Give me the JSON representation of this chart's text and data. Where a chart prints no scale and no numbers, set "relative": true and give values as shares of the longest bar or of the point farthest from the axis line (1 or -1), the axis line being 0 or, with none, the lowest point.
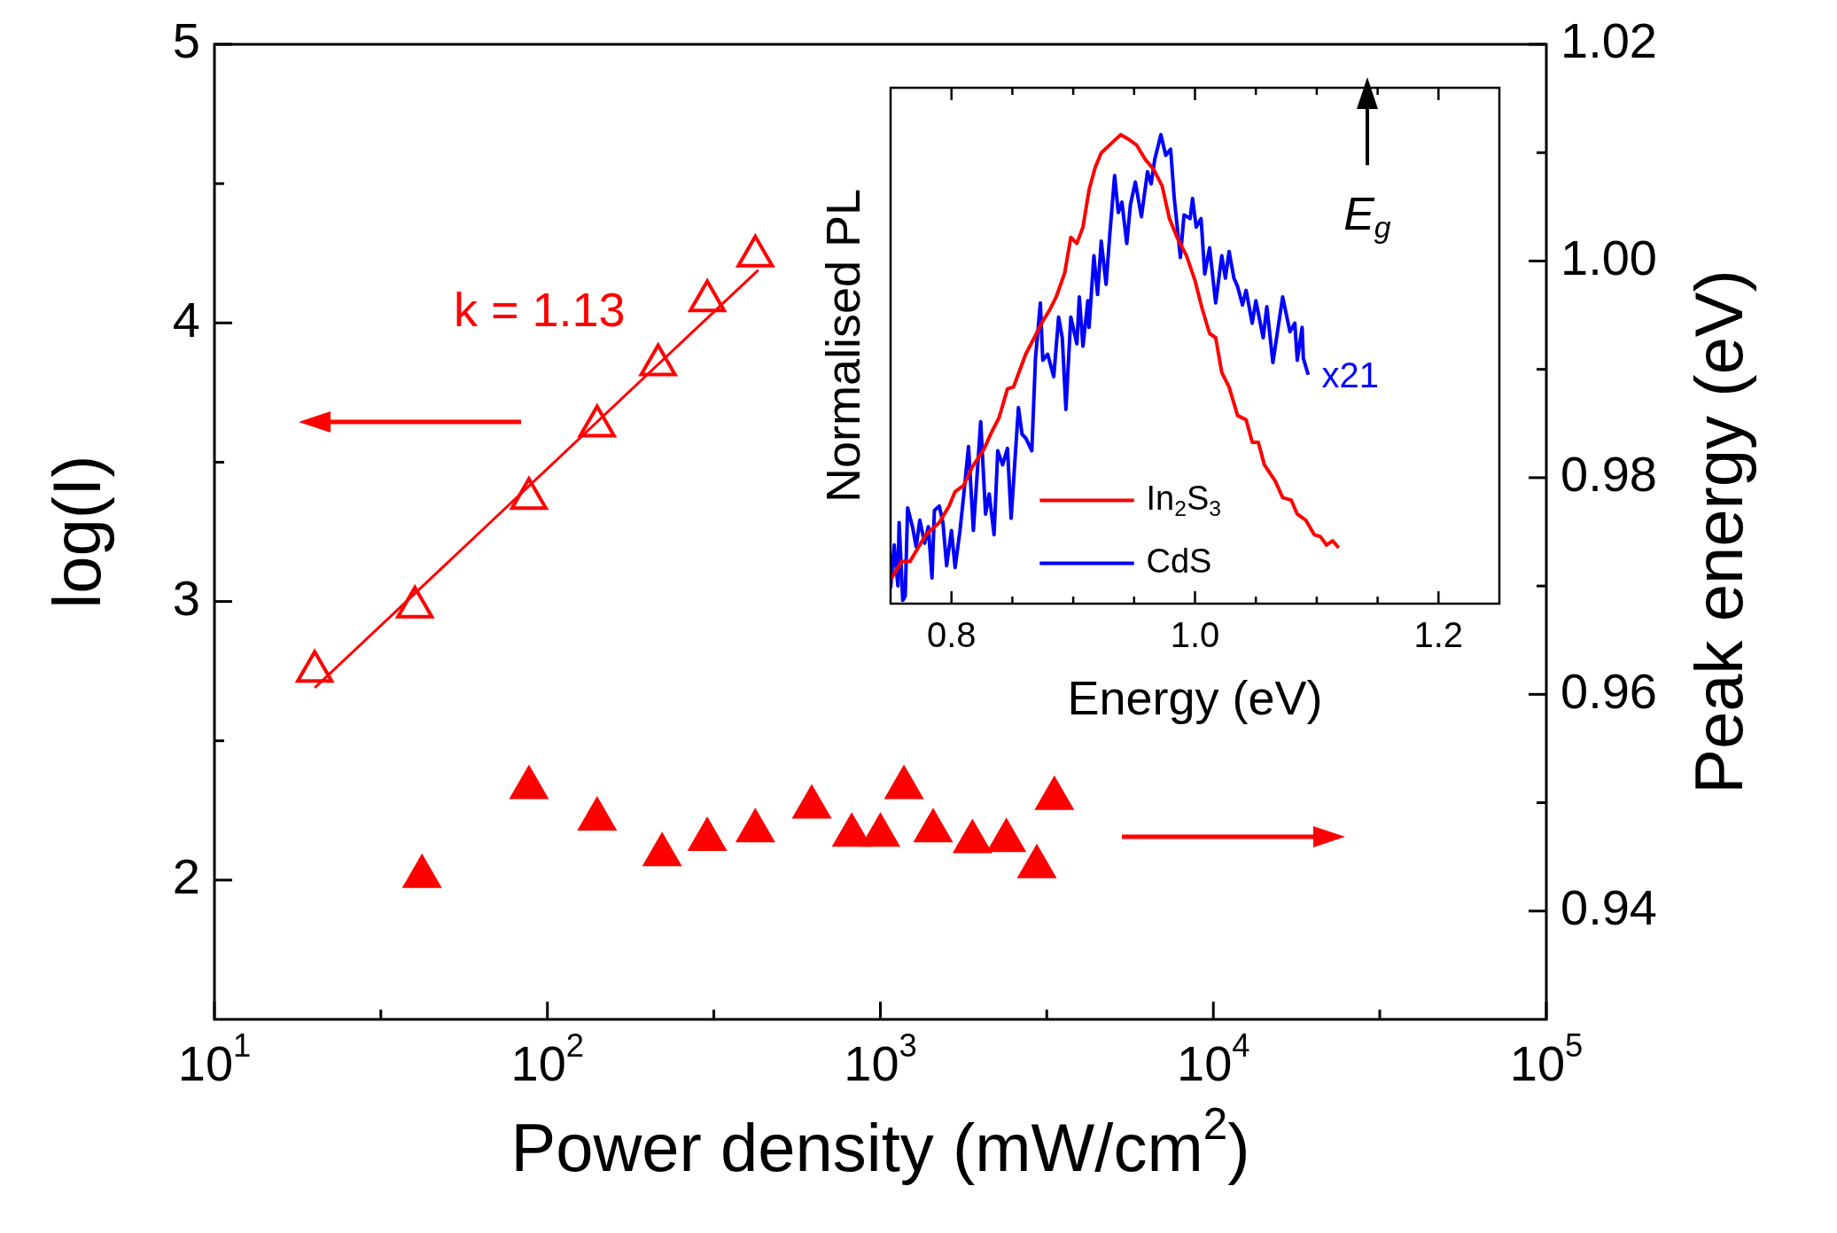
{
  "chart_data": [
    {
      "type": "scatter",
      "xlabel": "Power density (mW/cm$^{2}$)",
      "ylabel": "log(I)",
      "y2label": "Peak energy (eV)",
      "log": "x",
      "legend": false,
      "xlim": [
        10,
        100000
      ],
      "ylim": [
        1.5,
        5
      ],
      "y2lim": [
        0.93,
        1.02
      ],
      "xticks": [
        {
          "value": 10,
          "label": "10$^{1}$"
        },
        {
          "value": 31.6,
          "label": null
        },
        {
          "value": 100,
          "label": "10$^{2}$"
        },
        {
          "value": 316,
          "label": null
        },
        {
          "value": 1000,
          "label": "10$^{3}$"
        },
        {
          "value": 3160,
          "label": null
        },
        {
          "value": 10000,
          "label": "10$^{4}$"
        },
        {
          "value": 31600,
          "label": null
        },
        {
          "value": 100000,
          "label": "10$^{5}$"
        }
      ],
      "yticks": [
        2,
        {
          "value": 2.5,
          "label": null
        },
        3,
        {
          "value": 3.5,
          "label": null
        },
        4,
        {
          "value": 4.5,
          "label": null
        },
        5
      ],
      "y2ticks": [
        0.94,
        {
          "value": 0.95,
          "label": null
        },
        0.96,
        {
          "value": 0.97,
          "label": null
        },
        0.98,
        {
          "value": 0.99,
          "label": null
        },
        {
          "value": 1,
          "label": "1.00"
        },
        {
          "value": 1.01,
          "label": null
        },
        1.02
      ],
      "annotations": [
        "k = 1.13"
      ],
      "series": [
        {
          "marker": "triangle",
          "color": "#ff0000",
          "x": [
            20,
            40,
            88,
            141,
            215,
            302,
            421
          ],
          "values": [
            2.75,
            2.98,
            3.37,
            3.63,
            3.85,
            4.08,
            4.24
          ]
        },
        {
          "type": "line",
          "color": "#ff0000",
          "x": [
            20,
            430
          ],
          "values": [
            2.69,
            4.19
          ]
        },
        {
          "marker": "triangle",
          "axis": "y2",
          "color": "#ff0000",
          "x": [
            42,
            88,
            141,
            221,
            302,
            421,
            622,
            820,
            1000,
            1177,
            1440,
            1890,
            2390,
            2950,
            3330
          ],
          "values": [
            0.9432,
            0.9514,
            0.9485,
            0.9452,
            0.9466,
            0.9474,
            0.9496,
            0.947,
            0.947,
            0.9514,
            0.9474,
            0.9464,
            0.9465,
            0.9441,
            0.9504
          ]
        }
      ]
    },
    {
      "type": "line",
      "xlabel": "Energy (eV)",
      "ylabel": "Normalised PL",
      "relative": true,
      "legend": "bottom left",
      "xlim": [
        0.75,
        1.25
      ],
      "xticks": [
        0.8,
        {
          "value": 0.85,
          "label": null
        },
        {
          "value": 0.9,
          "label": null
        },
        {
          "value": 0.95,
          "label": null
        },
        {
          "value": 1,
          "label": "1.0"
        },
        {
          "value": 1.05,
          "label": null
        },
        {
          "value": 1.1,
          "label": null
        },
        {
          "value": 1.15,
          "label": null
        },
        1.2
      ],
      "tick_labels": "x",
      "annotations": [
        "x21",
        "E$_{g}$"
      ],
      "series": [
        {
          "name": "In$_{2}$S$_{3}$",
          "color": "#ff0000",
          "x": [
            0.75,
            0.759,
            0.766,
            0.773,
            0.779,
            0.79,
            0.798,
            0.803,
            0.81,
            0.817,
            0.827,
            0.833,
            0.839,
            0.846,
            0.851,
            0.856,
            0.861,
            0.868,
            0.874,
            0.881,
            0.886,
            0.893,
            0.898,
            0.903,
            0.908,
            0.913,
            0.918,
            0.923,
            0.932,
            0.939,
            0.945,
            0.952,
            0.959,
            0.966,
            0.973,
            0.979,
            0.986,
            0.993,
            1.0,
            1.006,
            1.012,
            1.017,
            1.022,
            1.028,
            1.035,
            1.042,
            1.047,
            1.052,
            1.057,
            1.066,
            1.072,
            1.079,
            1.084,
            1.091,
            1.098,
            1.103,
            1.108,
            1.113,
            1.118
          ],
          "values": [
            0.051,
            0.09,
            0.09,
            0.121,
            0.147,
            0.173,
            0.208,
            0.239,
            0.252,
            0.291,
            0.331,
            0.366,
            0.396,
            0.458,
            0.462,
            0.497,
            0.532,
            0.567,
            0.598,
            0.628,
            0.654,
            0.705,
            0.781,
            0.768,
            0.803,
            0.882,
            0.93,
            0.961,
            0.983,
            1.0,
            0.991,
            0.978,
            0.948,
            0.926,
            0.891,
            0.821,
            0.777,
            0.742,
            0.689,
            0.628,
            0.576,
            0.567,
            0.493,
            0.462,
            0.401,
            0.392,
            0.344,
            0.344,
            0.296,
            0.261,
            0.226,
            0.221,
            0.191,
            0.178,
            0.147,
            0.143,
            0.125,
            0.134,
            0.119
          ]
        },
        {
          "name": "CdS",
          "color": "#0000ff",
          "x": [
            0.75,
            0.753,
            0.756,
            0.757,
            0.76,
            0.762,
            0.764,
            0.768,
            0.771,
            0.774,
            0.778,
            0.781,
            0.784,
            0.786,
            0.79,
            0.793,
            0.796,
            0.8,
            0.803,
            0.807,
            0.81,
            0.814,
            0.818,
            0.824,
            0.828,
            0.831,
            0.835,
            0.838,
            0.842,
            0.846,
            0.849,
            0.855,
            0.858,
            0.861,
            0.866,
            0.869,
            0.873,
            0.875,
            0.879,
            0.884,
            0.888,
            0.891,
            0.894,
            0.898,
            0.903,
            0.905,
            0.908,
            0.912,
            0.913,
            0.917,
            0.92,
            0.923,
            0.927,
            0.93,
            0.934,
            0.937,
            0.94,
            0.944,
            0.947,
            0.951,
            0.956,
            0.961,
            0.964,
            0.967,
            0.972,
            0.976,
            0.98,
            0.983,
            0.988,
            0.991,
            0.996,
            0.998,
            1.001,
            1.005,
            1.008,
            1.012,
            1.017,
            1.022,
            1.025,
            1.028,
            1.032,
            1.035,
            1.039,
            1.042,
            1.047,
            1.05,
            1.056,
            1.059,
            1.064,
            1.072,
            1.078,
            1.082,
            1.084,
            1.088,
            1.089,
            1.093
          ],
          "values": [
            0.033,
            0.125,
            0.038,
            0.173,
            0.007,
            0.016,
            0.204,
            0.164,
            0.121,
            0.178,
            0.129,
            0.164,
            0.055,
            0.199,
            0.208,
            0.173,
            0.081,
            0.156,
            0.077,
            0.156,
            0.23,
            0.335,
            0.156,
            0.388,
            0.191,
            0.234,
            0.147,
            0.326,
            0.296,
            0.331,
            0.182,
            0.418,
            0.361,
            0.353,
            0.326,
            0.523,
            0.641,
            0.519,
            0.532,
            0.484,
            0.611,
            0.567,
            0.414,
            0.611,
            0.554,
            0.654,
            0.549,
            0.646,
            0.589,
            0.742,
            0.659,
            0.773,
            0.681,
            0.786,
            0.913,
            0.834,
            0.856,
            0.768,
            0.851,
            0.899,
            0.825,
            0.921,
            0.895,
            0.948,
            1.0,
            0.956,
            0.969,
            0.864,
            0.738,
            0.829,
            0.821,
            0.864,
            0.803,
            0.821,
            0.703,
            0.759,
            0.641,
            0.742,
            0.694,
            0.751,
            0.694,
            0.676,
            0.637,
            0.668,
            0.598,
            0.646,
            0.567,
            0.633,
            0.514,
            0.654,
            0.58,
            0.598,
            0.519,
            0.589,
            0.523,
            0.488
          ]
        }
      ]
    }
  ]
}
